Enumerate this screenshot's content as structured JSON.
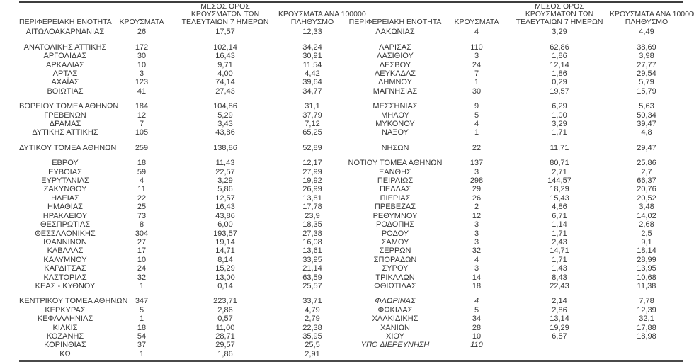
{
  "table": {
    "headers": {
      "region": "ΠΕΡΙΦΕΡΕΙΑΚΗ ΕΝΟΤΗΤΑ",
      "cases": "ΚΡΟΥΣΜΑΤΑ",
      "avg7_lines": [
        "ΜΕΣΟΣ ΟΡΟΣ",
        "ΚΡΟΥΣΜΑΤΩΝ ΤΩΝ",
        "ΤΕΛΕΥΤΑΙΩΝ 7 ΗΜΕΡΩΝ"
      ],
      "per100k_lines": [
        "ΚΡΟΥΣΜΑΤΑ ΑΝΑ 100000",
        "ΠΛΗΘΥΣΜΟ"
      ]
    },
    "rows": [
      {
        "left": {
          "region": "ΑΙΤΩΛΟΑΚΑΡΝΑΝΙΑΣ",
          "cases": "26",
          "avg7": "17,57",
          "per100k": "12,33"
        },
        "right": {
          "region": "ΛΑΚΩΝΙΑΣ",
          "cases": "4",
          "avg7": "3,29",
          "per100k": "4,49"
        },
        "gap_after": true
      },
      {
        "left": {
          "region": "ΑΝΑΤΟΛΙΚΗΣ ΑΤΤΙΚΗΣ",
          "cases": "172",
          "avg7": "102,14",
          "per100k": "34,24"
        },
        "right": {
          "region": "ΛΑΡΙΣΑΣ",
          "cases": "110",
          "avg7": "62,86",
          "per100k": "38,69"
        }
      },
      {
        "left": {
          "region": "ΑΡΓΟΛΙΔΑΣ",
          "cases": "30",
          "avg7": "16,43",
          "per100k": "30,91"
        },
        "right": {
          "region": "ΛΑΣΙΘΙΟΥ",
          "cases": "3",
          "avg7": "1,86",
          "per100k": "3,98"
        }
      },
      {
        "left": {
          "region": "ΑΡΚΑΔΙΑΣ",
          "cases": "10",
          "avg7": "9,71",
          "per100k": "11,54"
        },
        "right": {
          "region": "ΛΕΣΒΟΥ",
          "cases": "24",
          "avg7": "12,14",
          "per100k": "27,77"
        }
      },
      {
        "left": {
          "region": "ΑΡΤΑΣ",
          "cases": "3",
          "avg7": "4,00",
          "per100k": "4,42"
        },
        "right": {
          "region": "ΛΕΥΚΑΔΑΣ",
          "cases": "7",
          "avg7": "1,86",
          "per100k": "29,54"
        }
      },
      {
        "left": {
          "region": "ΑΧΑΪΑΣ",
          "cases": "123",
          "avg7": "74,14",
          "per100k": "39,64"
        },
        "right": {
          "region": "ΛΗΜΝΟΥ",
          "cases": "1",
          "avg7": "0,29",
          "per100k": "5,79"
        }
      },
      {
        "left": {
          "region": "ΒΟΙΩΤΙΑΣ",
          "cases": "41",
          "avg7": "27,43",
          "per100k": "34,77"
        },
        "right": {
          "region": "ΜΑΓΝΗΣΙΑΣ",
          "cases": "30",
          "avg7": "19,57",
          "per100k": "15,79"
        },
        "gap_after": true
      },
      {
        "left": {
          "region": "ΒΟΡΕΙΟΥ ΤΟΜΕΑ ΑΘΗΝΩΝ",
          "cases": "184",
          "avg7": "104,86",
          "per100k": "31,1"
        },
        "right": {
          "region": "ΜΕΣΣΗΝΙΑΣ",
          "cases": "9",
          "avg7": "6,29",
          "per100k": "5,63"
        }
      },
      {
        "left": {
          "region": "ΓΡΕΒΕΝΩΝ",
          "cases": "12",
          "avg7": "5,29",
          "per100k": "37,79"
        },
        "right": {
          "region": "ΜΗΛΟΥ",
          "cases": "5",
          "avg7": "1,00",
          "per100k": "50,34"
        }
      },
      {
        "left": {
          "region": "ΔΡΑΜΑΣ",
          "cases": "7",
          "avg7": "3,43",
          "per100k": "7,12"
        },
        "right": {
          "region": "ΜΥΚΟΝΟΥ",
          "cases": "4",
          "avg7": "3,29",
          "per100k": "39,47"
        }
      },
      {
        "left": {
          "region": "ΔΥΤΙΚΗΣ ΑΤΤΙΚΗΣ",
          "cases": "105",
          "avg7": "43,86",
          "per100k": "65,25"
        },
        "right": {
          "region": "ΝΑΞΟΥ",
          "cases": "1",
          "avg7": "1,71",
          "per100k": "4,8"
        },
        "gap_after": true
      },
      {
        "left": {
          "region": "ΔΥΤΙΚΟΥ ΤΟΜΕΑ ΑΘΗΝΩΝ",
          "cases": "259",
          "avg7": "138,86",
          "per100k": "52,89"
        },
        "right": {
          "region": "ΝΗΣΩΝ",
          "cases": "22",
          "avg7": "11,71",
          "per100k": "29,47"
        },
        "gap_after": true
      },
      {
        "left": {
          "region": "ΕΒΡΟΥ",
          "cases": "18",
          "avg7": "11,43",
          "per100k": "12,17"
        },
        "right": {
          "region": "ΝΟΤΙΟΥ ΤΟΜΕΑ ΑΘΗΝΩΝ",
          "cases": "137",
          "avg7": "80,71",
          "per100k": "25,86"
        }
      },
      {
        "left": {
          "region": "ΕΥΒΟΙΑΣ",
          "cases": "59",
          "avg7": "22,57",
          "per100k": "27,99"
        },
        "right": {
          "region": "ΞΑΝΘΗΣ",
          "cases": "3",
          "avg7": "2,71",
          "per100k": "2,7"
        }
      },
      {
        "left": {
          "region": "ΕΥΡΥΤΑΝΙΑΣ",
          "cases": "4",
          "avg7": "3,29",
          "per100k": "19,92"
        },
        "right": {
          "region": "ΠΕΙΡΑΙΩΣ",
          "cases": "298",
          "avg7": "144,57",
          "per100k": "66,37"
        }
      },
      {
        "left": {
          "region": "ΖΑΚΥΝΘΟΥ",
          "cases": "11",
          "avg7": "5,86",
          "per100k": "26,99"
        },
        "right": {
          "region": "ΠΕΛΛΑΣ",
          "cases": "29",
          "avg7": "18,29",
          "per100k": "20,76"
        }
      },
      {
        "left": {
          "region": "ΗΛΕΙΑΣ",
          "cases": "22",
          "avg7": "12,57",
          "per100k": "13,81"
        },
        "right": {
          "region": "ΠΙΕΡΙΑΣ",
          "cases": "26",
          "avg7": "15,43",
          "per100k": "20,52"
        }
      },
      {
        "left": {
          "region": "ΗΜΑΘΙΑΣ",
          "cases": "25",
          "avg7": "16,43",
          "per100k": "17,78"
        },
        "right": {
          "region": "ΠΡΕΒΕΖΑΣ",
          "cases": "2",
          "avg7": "4,86",
          "per100k": "3,48"
        }
      },
      {
        "left": {
          "region": "ΗΡΑΚΛΕΙΟΥ",
          "cases": "73",
          "avg7": "43,86",
          "per100k": "23,9"
        },
        "right": {
          "region": "ΡΕΘΥΜΝΟΥ",
          "cases": "12",
          "avg7": "6,71",
          "per100k": "14,02"
        }
      },
      {
        "left": {
          "region": "ΘΕΣΠΡΩΤΙΑΣ",
          "cases": "8",
          "avg7": "6,00",
          "per100k": "18,35"
        },
        "right": {
          "region": "ΡΟΔΟΠΗΣ",
          "cases": "3",
          "avg7": "1,14",
          "per100k": "2,68"
        }
      },
      {
        "left": {
          "region": "ΘΕΣΣΑΛΟΝΙΚΗΣ",
          "cases": "304",
          "avg7": "193,57",
          "per100k": "27,38"
        },
        "right": {
          "region": "ΡΟΔΟΥ",
          "cases": "3",
          "avg7": "1,71",
          "per100k": "2,5"
        }
      },
      {
        "left": {
          "region": "ΙΩΑΝΝΙΝΩΝ",
          "cases": "27",
          "avg7": "19,14",
          "per100k": "16,08"
        },
        "right": {
          "region": "ΣΑΜΟΥ",
          "cases": "3",
          "avg7": "2,43",
          "per100k": "9,1"
        }
      },
      {
        "left": {
          "region": "ΚΑΒΑΛΑΣ",
          "cases": "17",
          "avg7": "14,71",
          "per100k": "13,61"
        },
        "right": {
          "region": "ΣΕΡΡΩΝ",
          "cases": "32",
          "avg7": "14,71",
          "per100k": "18,14"
        }
      },
      {
        "left": {
          "region": "ΚΑΛΥΜΝΟΥ",
          "cases": "10",
          "avg7": "8,14",
          "per100k": "33,95"
        },
        "right": {
          "region": "ΣΠΟΡΑΔΩΝ",
          "cases": "4",
          "avg7": "1,71",
          "per100k": "28,99"
        }
      },
      {
        "left": {
          "region": "ΚΑΡΔΙΤΣΑΣ",
          "cases": "24",
          "avg7": "15,29",
          "per100k": "21,14"
        },
        "right": {
          "region": "ΣΥΡΟΥ",
          "cases": "3",
          "avg7": "1,43",
          "per100k": "13,95"
        }
      },
      {
        "left": {
          "region": "ΚΑΣΤΟΡΙΑΣ",
          "cases": "32",
          "avg7": "13,00",
          "per100k": "63,59"
        },
        "right": {
          "region": "ΤΡΙΚΑΛΩΝ",
          "cases": "14",
          "avg7": "8,43",
          "per100k": "10,68"
        }
      },
      {
        "left": {
          "region": "ΚΕΑΣ - ΚΥΘΝΟΥ",
          "cases": "1",
          "avg7": "0,14",
          "per100k": "25,57"
        },
        "right": {
          "region": "ΦΘΙΩΤΙΔΑΣ",
          "cases": "18",
          "avg7": "22,43",
          "per100k": "11,38"
        },
        "gap_after": true
      },
      {
        "left": {
          "region": "ΚΕΝΤΡΙΚΟΥ ΤΟΜΕΑ ΑΘΗΝΩΝ",
          "cases": "347",
          "avg7": "223,71",
          "per100k": "33,71"
        },
        "right": {
          "region": "ΦΛΩΡΙΝΑΣ",
          "cases": "4",
          "avg7": "2,14",
          "per100k": "7,78",
          "italic": true
        }
      },
      {
        "left": {
          "region": "ΚΕΡΚΥΡΑΣ",
          "cases": "5",
          "avg7": "2,86",
          "per100k": "4,79"
        },
        "right": {
          "region": "ΦΩΚΙΔΑΣ",
          "cases": "5",
          "avg7": "2,86",
          "per100k": "12,39"
        }
      },
      {
        "left": {
          "region": "ΚΕΦΑΛΛΗΝΙΑΣ",
          "cases": "1",
          "avg7": "0,57",
          "per100k": "2,79"
        },
        "right": {
          "region": "ΧΑΛΚΙΔΙΚΗΣ",
          "cases": "34",
          "avg7": "13,14",
          "per100k": "32,1"
        }
      },
      {
        "left": {
          "region": "ΚΙΛΚΙΣ",
          "cases": "18",
          "avg7": "11,00",
          "per100k": "22,38"
        },
        "right": {
          "region": "ΧΑΝΙΩΝ",
          "cases": "28",
          "avg7": "19,29",
          "per100k": "17,88"
        }
      },
      {
        "left": {
          "region": "ΚΟΖΑΝΗΣ",
          "cases": "54",
          "avg7": "28,71",
          "per100k": "35,95"
        },
        "right": {
          "region": "ΧΙΟΥ",
          "cases": "10",
          "avg7": "6,57",
          "per100k": "18,98"
        }
      },
      {
        "left": {
          "region": "ΚΟΡΙΝΘΙΑΣ",
          "cases": "37",
          "avg7": "29,57",
          "per100k": "25,5"
        },
        "right": {
          "region": "ΥΠΟ ΔΙΕΡΕΥΝΗΣΗ",
          "cases": "110",
          "avg7": "",
          "per100k": "",
          "italic": true
        }
      },
      {
        "left": {
          "region": "ΚΩ",
          "cases": "1",
          "avg7": "1,86",
          "per100k": "2,91"
        },
        "right": {
          "region": "",
          "cases": "",
          "avg7": "",
          "per100k": ""
        }
      }
    ]
  }
}
